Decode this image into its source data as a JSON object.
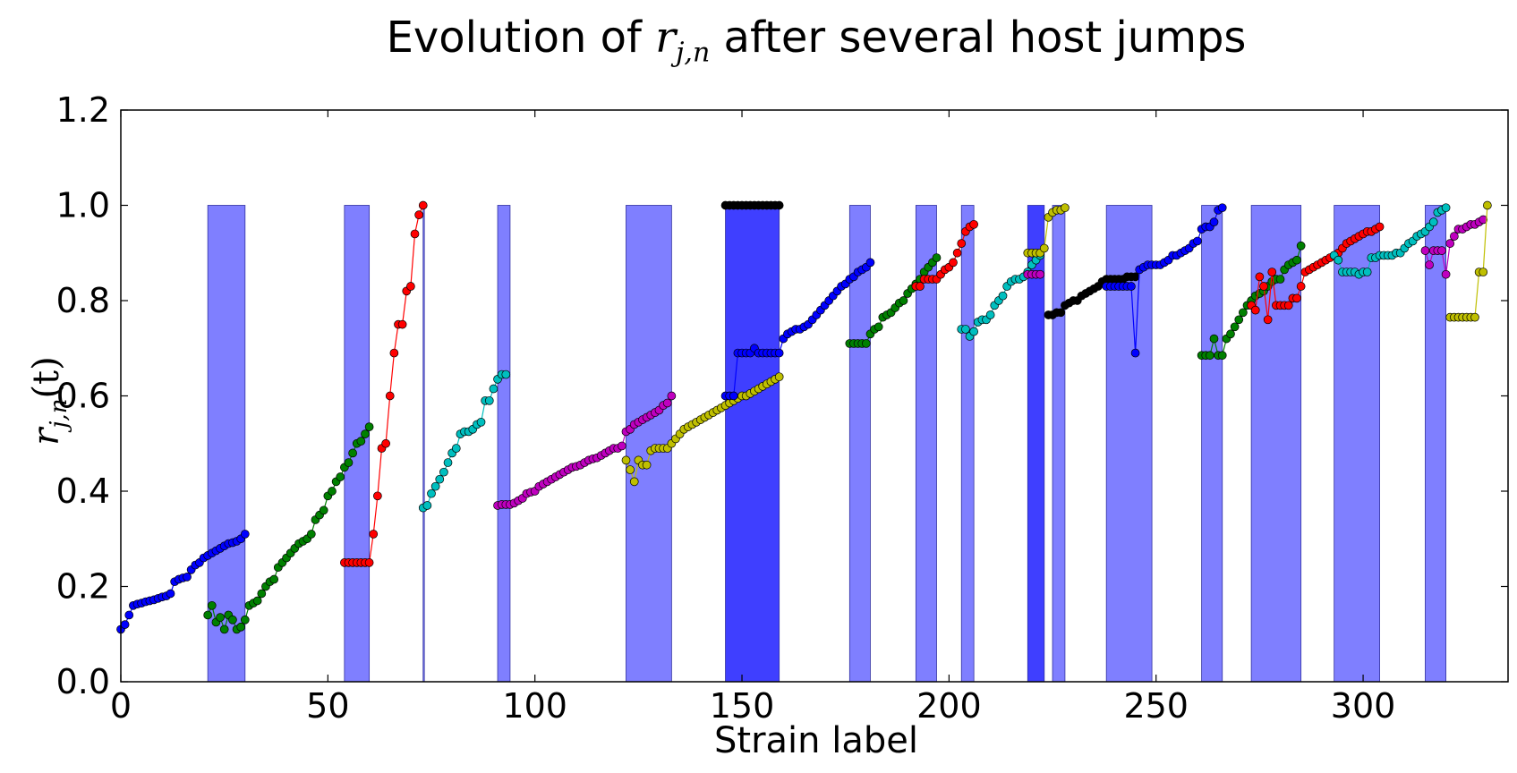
{
  "title": {
    "prefix": "Evolution of ",
    "var": "r",
    "sub": "j,n",
    "suffix": " after several host jumps"
  },
  "xlabel": "Strain label",
  "ylabel": {
    "var": "r",
    "sub": "j,n",
    "suffix": "(t)"
  },
  "colors": {
    "band": "#7f7fff",
    "band_dark": "#3f3fff",
    "blue": "#0000ff",
    "green": "#008000",
    "red": "#ff0000",
    "cyan": "#00bfbf",
    "magenta": "#bf00bf",
    "yellow": "#bfbf00",
    "black": "#000000"
  },
  "chart_data": {
    "type": "scatter",
    "title": "Evolution of r_{j,n} after several host jumps",
    "xlabel": "Strain label",
    "ylabel": "r_{j,n}(t)",
    "xlim": [
      0,
      335
    ],
    "ylim": [
      0.0,
      1.2
    ],
    "xticks": [
      "0",
      "50",
      "100",
      "150",
      "200",
      "250",
      "300"
    ],
    "yticks": [
      "0.0",
      "0.2",
      "0.4",
      "0.6",
      "0.8",
      "1.0",
      "1.2"
    ],
    "legend": "none",
    "grid": false,
    "shaded_regions": [
      {
        "x0": 21,
        "x1": 30,
        "y": 1.0
      },
      {
        "x0": 54,
        "x1": 60,
        "y": 1.0
      },
      {
        "x0": 73,
        "x1": 73.3,
        "y": 1.0
      },
      {
        "x0": 91,
        "x1": 94,
        "y": 1.0
      },
      {
        "x0": 122,
        "x1": 133,
        "y": 1.0
      },
      {
        "x0": 146,
        "x1": 159,
        "y": 1.0,
        "dark": true
      },
      {
        "x0": 176,
        "x1": 181,
        "y": 1.0
      },
      {
        "x0": 192,
        "x1": 197,
        "y": 1.0
      },
      {
        "x0": 203,
        "x1": 206,
        "y": 1.0
      },
      {
        "x0": 219,
        "x1": 223,
        "y": 1.0,
        "dark": true
      },
      {
        "x0": 225,
        "x1": 228,
        "y": 1.0
      },
      {
        "x0": 238,
        "x1": 249,
        "y": 1.0
      },
      {
        "x0": 261,
        "x1": 266,
        "y": 1.0
      },
      {
        "x0": 273,
        "x1": 285,
        "y": 1.0
      },
      {
        "x0": 293,
        "x1": 304,
        "y": 1.0
      },
      {
        "x0": 315,
        "x1": 320,
        "y": 1.0
      }
    ],
    "series": [
      {
        "color": "blue",
        "x": [
          0,
          1,
          2,
          3,
          4,
          5,
          6,
          7,
          8,
          9,
          10,
          11,
          12,
          13,
          14,
          15,
          16,
          17,
          18,
          19,
          20,
          21,
          22,
          23,
          24,
          25,
          26,
          27,
          28,
          29,
          30
        ],
        "y": [
          0.11,
          0.12,
          0.14,
          0.16,
          0.163,
          0.165,
          0.168,
          0.17,
          0.172,
          0.175,
          0.178,
          0.18,
          0.185,
          0.21,
          0.215,
          0.218,
          0.22,
          0.235,
          0.245,
          0.25,
          0.26,
          0.265,
          0.27,
          0.275,
          0.28,
          0.285,
          0.29,
          0.292,
          0.295,
          0.3,
          0.31
        ]
      },
      {
        "color": "green",
        "x": [
          21,
          22,
          23,
          24,
          25,
          26,
          27,
          28,
          29,
          30,
          31,
          32,
          33,
          34,
          35,
          36,
          37,
          38,
          39,
          40,
          41,
          42,
          43,
          44,
          45,
          46,
          47,
          48,
          49,
          50,
          51,
          52,
          53,
          54,
          55,
          56,
          57,
          58,
          59,
          60
        ],
        "y": [
          0.14,
          0.16,
          0.125,
          0.135,
          0.11,
          0.14,
          0.13,
          0.11,
          0.115,
          0.13,
          0.16,
          0.165,
          0.17,
          0.185,
          0.2,
          0.21,
          0.215,
          0.24,
          0.25,
          0.26,
          0.27,
          0.28,
          0.29,
          0.295,
          0.3,
          0.31,
          0.34,
          0.35,
          0.36,
          0.39,
          0.4,
          0.42,
          0.43,
          0.45,
          0.46,
          0.48,
          0.5,
          0.505,
          0.52,
          0.535
        ]
      },
      {
        "color": "red",
        "x": [
          54,
          55,
          56,
          57,
          58,
          59,
          60,
          61,
          62,
          63,
          64,
          65,
          66,
          67,
          68,
          69,
          70,
          71,
          72,
          73
        ],
        "y": [
          0.25,
          0.25,
          0.25,
          0.25,
          0.25,
          0.25,
          0.25,
          0.31,
          0.39,
          0.49,
          0.5,
          0.6,
          0.69,
          0.75,
          0.75,
          0.82,
          0.83,
          0.94,
          0.98,
          1.0
        ]
      },
      {
        "color": "cyan",
        "x": [
          73,
          74,
          75,
          76,
          77,
          78,
          79,
          80,
          81,
          82,
          83,
          84,
          85,
          86,
          87,
          88,
          89,
          90,
          91,
          92,
          93
        ],
        "y": [
          0.365,
          0.37,
          0.395,
          0.41,
          0.425,
          0.44,
          0.46,
          0.48,
          0.49,
          0.52,
          0.525,
          0.525,
          0.53,
          0.54,
          0.545,
          0.59,
          0.59,
          0.615,
          0.635,
          0.645,
          0.645
        ]
      },
      {
        "color": "magenta",
        "x": [
          91,
          92,
          93,
          94,
          95,
          96,
          97,
          98,
          99,
          100,
          101,
          102,
          103,
          104,
          105,
          106,
          107,
          108,
          109,
          110,
          111,
          112,
          113,
          114,
          115,
          116,
          117,
          118,
          119,
          120,
          121,
          122,
          123,
          124,
          125,
          126,
          127,
          128,
          129,
          130,
          131,
          132,
          133
        ],
        "y": [
          0.37,
          0.372,
          0.372,
          0.372,
          0.375,
          0.38,
          0.385,
          0.395,
          0.398,
          0.4,
          0.41,
          0.415,
          0.42,
          0.425,
          0.43,
          0.435,
          0.44,
          0.445,
          0.45,
          0.452,
          0.455,
          0.46,
          0.465,
          0.468,
          0.47,
          0.475,
          0.48,
          0.485,
          0.49,
          0.49,
          0.495,
          0.525,
          0.53,
          0.54,
          0.545,
          0.55,
          0.555,
          0.56,
          0.565,
          0.57,
          0.58,
          0.585,
          0.6
        ]
      },
      {
        "color": "yellow",
        "x": [
          122,
          123,
          124,
          125,
          126,
          127,
          128,
          129,
          130,
          131,
          132,
          133,
          134,
          135,
          136,
          137,
          138,
          139,
          140,
          141,
          142,
          143,
          144,
          145,
          146,
          147,
          148,
          149,
          150,
          151,
          152,
          153,
          154,
          155,
          156,
          157,
          158,
          159
        ],
        "y": [
          0.465,
          0.445,
          0.42,
          0.465,
          0.455,
          0.455,
          0.485,
          0.49,
          0.49,
          0.49,
          0.49,
          0.5,
          0.51,
          0.52,
          0.53,
          0.535,
          0.54,
          0.545,
          0.55,
          0.555,
          0.56,
          0.565,
          0.57,
          0.575,
          0.58,
          0.585,
          0.59,
          0.595,
          0.6,
          0.6,
          0.605,
          0.61,
          0.615,
          0.62,
          0.625,
          0.63,
          0.635,
          0.64
        ]
      },
      {
        "color": "blue",
        "x": [
          146,
          147,
          148,
          149,
          150,
          151,
          152,
          153,
          154,
          155,
          156,
          157,
          158,
          159,
          160,
          161,
          162,
          163,
          164,
          165,
          166,
          167,
          168,
          169,
          170,
          171,
          172,
          173,
          174,
          175,
          176,
          177,
          178,
          179,
          180,
          181
        ],
        "y": [
          0.6,
          0.6,
          0.6,
          0.69,
          0.69,
          0.69,
          0.69,
          0.7,
          0.69,
          0.69,
          0.69,
          0.69,
          0.69,
          0.69,
          0.72,
          0.73,
          0.735,
          0.74,
          0.74,
          0.745,
          0.75,
          0.76,
          0.77,
          0.78,
          0.79,
          0.8,
          0.81,
          0.82,
          0.83,
          0.835,
          0.845,
          0.85,
          0.86,
          0.865,
          0.87,
          0.88
        ]
      },
      {
        "color": "black",
        "x": [
          146,
          147,
          148,
          149,
          150,
          151,
          152,
          153,
          154,
          155,
          156,
          157,
          158,
          159
        ],
        "y": [
          1.0,
          1.0,
          1.0,
          1.0,
          1.0,
          1.0,
          1.0,
          1.0,
          1.0,
          1.0,
          1.0,
          1.0,
          1.0,
          1.0
        ]
      },
      {
        "color": "green",
        "x": [
          176,
          177,
          178,
          179,
          180,
          181,
          182,
          183,
          184,
          185,
          186,
          187,
          188,
          189,
          190,
          191,
          192,
          193,
          194,
          195,
          196,
          197
        ],
        "y": [
          0.71,
          0.71,
          0.71,
          0.71,
          0.71,
          0.73,
          0.74,
          0.745,
          0.765,
          0.77,
          0.775,
          0.785,
          0.795,
          0.8,
          0.815,
          0.825,
          0.835,
          0.845,
          0.86,
          0.87,
          0.88,
          0.89
        ]
      },
      {
        "color": "red",
        "x": [
          192,
          193,
          194,
          195,
          196,
          197,
          198,
          199,
          200,
          201,
          202,
          203,
          204,
          205,
          206
        ],
        "y": [
          0.83,
          0.83,
          0.845,
          0.845,
          0.845,
          0.845,
          0.855,
          0.865,
          0.87,
          0.88,
          0.9,
          0.92,
          0.945,
          0.955,
          0.96
        ]
      },
      {
        "color": "cyan",
        "x": [
          203,
          204,
          205,
          206,
          207,
          208,
          209,
          210,
          211,
          212,
          213,
          214,
          215,
          216,
          217,
          218,
          219,
          220,
          221,
          222
        ],
        "y": [
          0.74,
          0.74,
          0.725,
          0.735,
          0.755,
          0.76,
          0.76,
          0.77,
          0.79,
          0.8,
          0.81,
          0.83,
          0.84,
          0.845,
          0.845,
          0.85,
          0.86,
          0.875,
          0.885,
          0.895
        ]
      },
      {
        "color": "magenta",
        "x": [
          219,
          220,
          221,
          222
        ],
        "y": [
          0.855,
          0.855,
          0.855,
          0.855
        ]
      },
      {
        "color": "yellow",
        "x": [
          219,
          220,
          221,
          222,
          223,
          224,
          225,
          226,
          227,
          228
        ],
        "y": [
          0.9,
          0.9,
          0.9,
          0.9,
          0.91,
          0.975,
          0.985,
          0.99,
          0.99,
          0.995
        ]
      },
      {
        "color": "black",
        "x": [
          224,
          225,
          226,
          227,
          228,
          229,
          230,
          231,
          232,
          233,
          234,
          235,
          236,
          237,
          238,
          239,
          240,
          241,
          242,
          243,
          244,
          245
        ],
        "y": [
          0.77,
          0.77,
          0.775,
          0.775,
          0.79,
          0.795,
          0.8,
          0.8,
          0.81,
          0.815,
          0.82,
          0.825,
          0.83,
          0.84,
          0.845,
          0.845,
          0.845,
          0.845,
          0.845,
          0.85,
          0.85,
          0.85
        ]
      },
      {
        "color": "blue",
        "x": [
          238,
          239,
          240,
          241,
          242,
          243,
          244,
          245,
          246,
          247,
          248,
          249,
          250,
          251,
          252,
          253,
          254,
          255,
          256,
          257,
          258,
          259,
          260,
          261,
          262,
          263,
          264,
          265,
          266
        ],
        "y": [
          0.83,
          0.83,
          0.83,
          0.83,
          0.83,
          0.83,
          0.83,
          0.69,
          0.865,
          0.87,
          0.875,
          0.875,
          0.875,
          0.875,
          0.88,
          0.885,
          0.895,
          0.895,
          0.9,
          0.905,
          0.91,
          0.92,
          0.925,
          0.95,
          0.955,
          0.955,
          0.965,
          0.99,
          0.995
        ]
      },
      {
        "color": "green",
        "x": [
          261,
          262,
          263,
          264,
          265,
          266,
          267,
          268,
          269,
          270,
          271,
          272,
          273,
          274,
          275,
          276,
          277,
          278,
          279,
          280,
          281,
          282,
          283,
          284,
          285
        ],
        "y": [
          0.685,
          0.685,
          0.685,
          0.72,
          0.685,
          0.685,
          0.72,
          0.73,
          0.745,
          0.76,
          0.775,
          0.79,
          0.8,
          0.81,
          0.815,
          0.82,
          0.83,
          0.84,
          0.845,
          0.845,
          0.865,
          0.875,
          0.88,
          0.885,
          0.915
        ]
      },
      {
        "color": "red",
        "x": [
          273,
          274,
          275,
          276,
          277,
          278,
          279,
          280,
          281,
          282,
          283,
          284,
          285,
          286,
          287,
          288,
          289,
          290,
          291,
          292,
          293,
          294,
          295,
          296,
          297,
          298,
          299,
          300,
          301,
          302,
          303,
          304
        ],
        "y": [
          0.79,
          0.78,
          0.85,
          0.83,
          0.76,
          0.86,
          0.79,
          0.79,
          0.79,
          0.79,
          0.805,
          0.805,
          0.83,
          0.86,
          0.865,
          0.87,
          0.875,
          0.88,
          0.885,
          0.89,
          0.895,
          0.9,
          0.91,
          0.92,
          0.925,
          0.93,
          0.935,
          0.94,
          0.945,
          0.945,
          0.95,
          0.955
        ]
      },
      {
        "color": "cyan",
        "x": [
          293,
          294,
          295,
          296,
          297,
          298,
          299,
          300,
          301,
          302,
          303,
          304,
          305,
          306,
          307,
          308,
          309,
          310,
          311,
          312,
          313,
          314,
          315,
          316,
          317,
          318,
          319,
          320
        ],
        "y": [
          0.895,
          0.885,
          0.86,
          0.86,
          0.86,
          0.86,
          0.855,
          0.86,
          0.86,
          0.89,
          0.89,
          0.895,
          0.895,
          0.895,
          0.895,
          0.9,
          0.9,
          0.91,
          0.92,
          0.925,
          0.935,
          0.94,
          0.945,
          0.955,
          0.965,
          0.985,
          0.99,
          0.995
        ]
      },
      {
        "color": "magenta",
        "x": [
          315,
          316,
          317,
          318,
          319,
          320,
          321,
          322,
          323,
          324,
          325,
          326,
          327,
          328,
          329
        ],
        "y": [
          0.905,
          0.875,
          0.905,
          0.905,
          0.905,
          0.855,
          0.92,
          0.935,
          0.95,
          0.95,
          0.955,
          0.96,
          0.96,
          0.965,
          0.97
        ]
      },
      {
        "color": "yellow",
        "x": [
          321,
          322,
          323,
          324,
          325,
          326,
          327,
          328,
          329,
          330
        ],
        "y": [
          0.765,
          0.765,
          0.765,
          0.765,
          0.765,
          0.765,
          0.765,
          0.86,
          0.86,
          1.0
        ]
      }
    ]
  }
}
